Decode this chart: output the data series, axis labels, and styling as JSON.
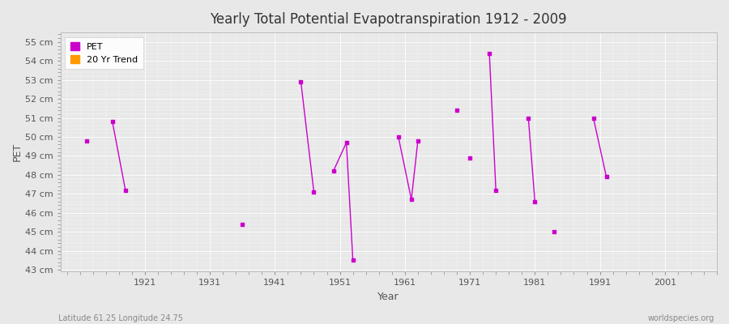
{
  "title": "Yearly Total Potential Evapotranspiration 1912 - 2009",
  "xlabel": "Year",
  "ylabel": "PET",
  "background_color": "#e8e8e8",
  "plot_background_color": "#e8e8e8",
  "grid_color": "#d8d8d8",
  "pet_color": "#cc00cc",
  "trend_color": "#ff9900",
  "xlim": [
    1908,
    2009
  ],
  "ylim": [
    43,
    55.5
  ],
  "yticks": [
    43,
    44,
    45,
    46,
    47,
    48,
    49,
    50,
    51,
    52,
    53,
    54,
    55
  ],
  "xticks": [
    1921,
    1931,
    1941,
    1951,
    1961,
    1971,
    1981,
    1991,
    2001
  ],
  "segments": [
    [
      [
        1912,
        49.8
      ],
      [
        1912,
        49.8
      ]
    ],
    [
      [
        1916,
        50.8
      ],
      [
        1918,
        47.2
      ]
    ],
    [
      [
        1936,
        45.4
      ],
      [
        1936,
        45.4
      ]
    ],
    [
      [
        1945,
        52.9
      ],
      [
        1947,
        47.1
      ]
    ],
    [
      [
        1950,
        48.2
      ],
      [
        1952,
        49.7
      ]
    ],
    [
      [
        1952,
        49.7
      ],
      [
        1953,
        43.5
      ]
    ],
    [
      [
        1960,
        50.0
      ],
      [
        1962,
        46.7
      ]
    ],
    [
      [
        1962,
        46.7
      ],
      [
        1963,
        49.8
      ]
    ],
    [
      [
        1969,
        51.4
      ],
      [
        1969,
        51.4
      ]
    ],
    [
      [
        1971,
        48.9
      ],
      [
        1971,
        48.9
      ]
    ],
    [
      [
        1974,
        54.4
      ],
      [
        1975,
        47.2
      ]
    ],
    [
      [
        1980,
        51.0
      ],
      [
        1981,
        46.6
      ]
    ],
    [
      [
        1984,
        45.0
      ],
      [
        1984,
        45.0
      ]
    ],
    [
      [
        1990,
        51.0
      ],
      [
        1992,
        47.9
      ]
    ]
  ],
  "points": [
    [
      1912,
      49.8
    ],
    [
      1916,
      50.8
    ],
    [
      1918,
      47.2
    ],
    [
      1936,
      45.4
    ],
    [
      1945,
      52.9
    ],
    [
      1947,
      47.1
    ],
    [
      1950,
      48.2
    ],
    [
      1952,
      49.7
    ],
    [
      1953,
      43.5
    ],
    [
      1960,
      50.0
    ],
    [
      1962,
      46.7
    ],
    [
      1963,
      49.8
    ],
    [
      1969,
      51.4
    ],
    [
      1971,
      48.9
    ],
    [
      1974,
      54.4
    ],
    [
      1975,
      47.2
    ],
    [
      1980,
      51.0
    ],
    [
      1981,
      46.6
    ],
    [
      1984,
      45.0
    ],
    [
      1990,
      51.0
    ],
    [
      1992,
      47.9
    ]
  ],
  "footnote_left": "Latitude 61.25 Longitude 24.75",
  "footnote_right": "worldspecies.org"
}
